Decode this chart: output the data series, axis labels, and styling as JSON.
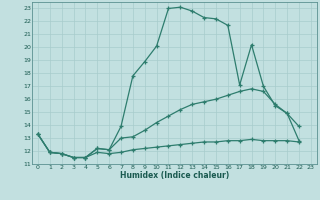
{
  "xlabel": "Humidex (Indice chaleur)",
  "background_color": "#c2e0e0",
  "line_color": "#2e7d6e",
  "grid_color": "#a8cccc",
  "xlim": [
    -0.5,
    23.5
  ],
  "ylim": [
    11,
    23.5
  ],
  "xticks": [
    0,
    1,
    2,
    3,
    4,
    5,
    6,
    7,
    8,
    9,
    10,
    11,
    12,
    13,
    14,
    15,
    16,
    17,
    18,
    19,
    20,
    21,
    22,
    23
  ],
  "yticks": [
    11,
    12,
    13,
    14,
    15,
    16,
    17,
    18,
    19,
    20,
    21,
    22,
    23
  ],
  "line1_x": [
    0,
    1,
    2,
    3,
    4,
    5,
    6,
    7,
    8,
    9,
    10,
    11,
    12,
    13,
    14,
    15,
    16,
    17,
    18,
    19,
    20,
    21,
    22
  ],
  "line1_y": [
    13.3,
    11.9,
    11.8,
    11.5,
    11.5,
    12.2,
    12.1,
    13.9,
    17.8,
    18.9,
    20.1,
    23.0,
    23.1,
    22.8,
    22.3,
    22.2,
    21.7,
    17.1,
    20.2,
    17.0,
    15.5,
    14.9,
    13.9
  ],
  "line2_x": [
    0,
    1,
    2,
    3,
    4,
    5,
    6,
    7,
    8,
    9,
    10,
    11,
    12,
    13,
    14,
    15,
    16,
    17,
    18,
    19,
    20,
    21,
    22
  ],
  "line2_y": [
    13.3,
    11.9,
    11.8,
    11.5,
    11.5,
    12.2,
    12.1,
    13.0,
    13.1,
    13.6,
    14.2,
    14.7,
    15.2,
    15.6,
    15.8,
    16.0,
    16.3,
    16.6,
    16.8,
    16.6,
    15.6,
    14.9,
    12.8
  ],
  "line3_x": [
    0,
    1,
    2,
    3,
    4,
    5,
    6,
    7,
    8,
    9,
    10,
    11,
    12,
    13,
    14,
    15,
    16,
    17,
    18,
    19,
    20,
    21,
    22
  ],
  "line3_y": [
    13.3,
    11.9,
    11.8,
    11.5,
    11.5,
    11.9,
    11.8,
    11.9,
    12.1,
    12.2,
    12.3,
    12.4,
    12.5,
    12.6,
    12.7,
    12.7,
    12.8,
    12.8,
    12.9,
    12.8,
    12.8,
    12.8,
    12.7
  ]
}
